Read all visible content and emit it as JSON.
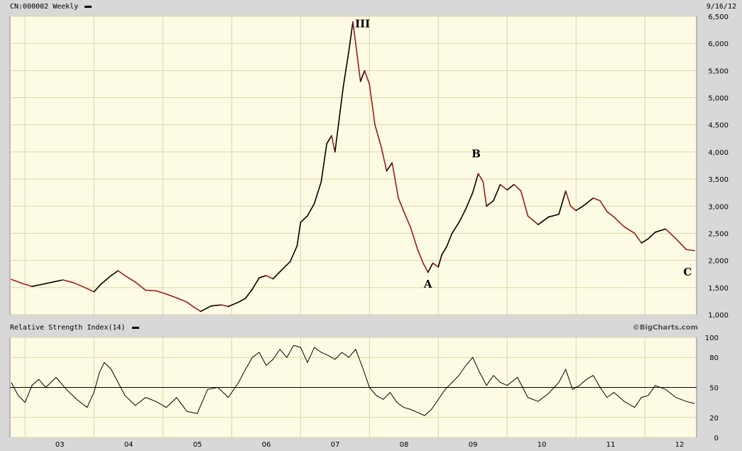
{
  "header": {
    "symbol_label": "CN:000002 Weekly",
    "date": "9/16/12"
  },
  "rsi_panel": {
    "title": "Relative Strength Index(14)",
    "credit": "©BigCharts.com"
  },
  "colors": {
    "plot_bg": "#fdfbe3",
    "grid": "#d9d6a8",
    "frame_bg": "#d8d8d8",
    "up_bar": "#000000",
    "down_bar": "#9b1c1c"
  },
  "chart_data": [
    {
      "type": "line",
      "subtype": "weekly price bars (up black, down red)",
      "x_tick_labels": [
        "03",
        "04",
        "05",
        "06",
        "07",
        "08",
        "09",
        "10",
        "11",
        "12"
      ],
      "y_ticks": [
        1000,
        1500,
        2000,
        2500,
        3000,
        3500,
        4000,
        4500,
        5000,
        5500,
        6000,
        6500
      ],
      "y_tick_labels": [
        "1,000",
        "1,500",
        "2,000",
        "2,500",
        "3,000",
        "3,500",
        "4,000",
        "4,500",
        "5,000",
        "5,500",
        "6,000",
        "6,500"
      ],
      "ylim": [
        1000,
        6500
      ],
      "xlim": [
        2002.78,
        2012.75
      ],
      "scale": "linear",
      "grid": true,
      "points": [
        [
          2002.8,
          1650
        ],
        [
          2002.95,
          1580
        ],
        [
          2003.1,
          1520
        ],
        [
          2003.25,
          1560
        ],
        [
          2003.4,
          1600
        ],
        [
          2003.55,
          1640
        ],
        [
          2003.7,
          1590
        ],
        [
          2003.85,
          1510
        ],
        [
          2004.0,
          1420
        ],
        [
          2004.1,
          1560
        ],
        [
          2004.25,
          1720
        ],
        [
          2004.35,
          1810
        ],
        [
          2004.45,
          1720
        ],
        [
          2004.6,
          1600
        ],
        [
          2004.75,
          1450
        ],
        [
          2004.9,
          1440
        ],
        [
          2005.05,
          1380
        ],
        [
          2005.2,
          1310
        ],
        [
          2005.35,
          1230
        ],
        [
          2005.45,
          1140
        ],
        [
          2005.55,
          1060
        ],
        [
          2005.7,
          1160
        ],
        [
          2005.85,
          1180
        ],
        [
          2005.95,
          1150
        ],
        [
          2006.1,
          1230
        ],
        [
          2006.2,
          1300
        ],
        [
          2006.3,
          1470
        ],
        [
          2006.4,
          1680
        ],
        [
          2006.5,
          1720
        ],
        [
          2006.6,
          1660
        ],
        [
          2006.7,
          1790
        ],
        [
          2006.85,
          1980
        ],
        [
          2006.95,
          2270
        ],
        [
          2007.0,
          2700
        ],
        [
          2007.1,
          2820
        ],
        [
          2007.2,
          3050
        ],
        [
          2007.3,
          3450
        ],
        [
          2007.38,
          4150
        ],
        [
          2007.45,
          4300
        ],
        [
          2007.5,
          4000
        ],
        [
          2007.55,
          4500
        ],
        [
          2007.62,
          5200
        ],
        [
          2007.7,
          5850
        ],
        [
          2007.76,
          6400
        ],
        [
          2007.82,
          5800
        ],
        [
          2007.87,
          5300
        ],
        [
          2007.93,
          5500
        ],
        [
          2008.0,
          5250
        ],
        [
          2008.08,
          4500
        ],
        [
          2008.17,
          4100
        ],
        [
          2008.25,
          3650
        ],
        [
          2008.33,
          3800
        ],
        [
          2008.42,
          3150
        ],
        [
          2008.5,
          2900
        ],
        [
          2008.6,
          2600
        ],
        [
          2008.7,
          2200
        ],
        [
          2008.78,
          1950
        ],
        [
          2008.85,
          1780
        ],
        [
          2008.92,
          1950
        ],
        [
          2009.0,
          1880
        ],
        [
          2009.05,
          2100
        ],
        [
          2009.12,
          2250
        ],
        [
          2009.2,
          2500
        ],
        [
          2009.3,
          2700
        ],
        [
          2009.4,
          2950
        ],
        [
          2009.5,
          3250
        ],
        [
          2009.58,
          3600
        ],
        [
          2009.65,
          3450
        ],
        [
          2009.7,
          3000
        ],
        [
          2009.8,
          3100
        ],
        [
          2009.9,
          3400
        ],
        [
          2010.0,
          3300
        ],
        [
          2010.1,
          3400
        ],
        [
          2010.2,
          3280
        ],
        [
          2010.3,
          2820
        ],
        [
          2010.45,
          2660
        ],
        [
          2010.6,
          2800
        ],
        [
          2010.75,
          2850
        ],
        [
          2010.85,
          3280
        ],
        [
          2010.92,
          3000
        ],
        [
          2011.0,
          2920
        ],
        [
          2011.1,
          3000
        ],
        [
          2011.25,
          3150
        ],
        [
          2011.35,
          3100
        ],
        [
          2011.45,
          2900
        ],
        [
          2011.55,
          2800
        ],
        [
          2011.7,
          2620
        ],
        [
          2011.85,
          2500
        ],
        [
          2011.95,
          2320
        ],
        [
          2012.05,
          2400
        ],
        [
          2012.15,
          2520
        ],
        [
          2012.3,
          2580
        ],
        [
          2012.45,
          2400
        ],
        [
          2012.6,
          2200
        ],
        [
          2012.72,
          2180
        ]
      ],
      "annotations": [
        {
          "label": "III",
          "x": 2007.9,
          "y": 6300
        },
        {
          "label": "A",
          "x": 2008.85,
          "y": 1500
        },
        {
          "label": "B",
          "x": 2009.55,
          "y": 3900
        },
        {
          "label": "C",
          "x": 2012.62,
          "y": 1720
        }
      ]
    },
    {
      "type": "line",
      "title": "Relative Strength Index(14)",
      "y_ticks": [
        0,
        20,
        50,
        80,
        100
      ],
      "y_tick_labels": [
        "0",
        "20",
        "50",
        "80",
        "100"
      ],
      "reference_line": 50,
      "ylim": [
        0,
        100
      ],
      "xlim": [
        2002.78,
        2012.75
      ],
      "grid": true,
      "points": [
        [
          2002.8,
          55
        ],
        [
          2002.9,
          42
        ],
        [
          2003.0,
          35
        ],
        [
          2003.1,
          52
        ],
        [
          2003.2,
          58
        ],
        [
          2003.3,
          50
        ],
        [
          2003.45,
          60
        ],
        [
          2003.6,
          48
        ],
        [
          2003.75,
          38
        ],
        [
          2003.9,
          30
        ],
        [
          2004.0,
          45
        ],
        [
          2004.08,
          65
        ],
        [
          2004.15,
          75
        ],
        [
          2004.25,
          68
        ],
        [
          2004.35,
          55
        ],
        [
          2004.45,
          42
        ],
        [
          2004.6,
          32
        ],
        [
          2004.75,
          40
        ],
        [
          2004.9,
          36
        ],
        [
          2005.05,
          30
        ],
        [
          2005.2,
          40
        ],
        [
          2005.35,
          26
        ],
        [
          2005.5,
          24
        ],
        [
          2005.65,
          48
        ],
        [
          2005.8,
          50
        ],
        [
          2005.95,
          40
        ],
        [
          2006.1,
          55
        ],
        [
          2006.2,
          68
        ],
        [
          2006.3,
          80
        ],
        [
          2006.4,
          85
        ],
        [
          2006.5,
          72
        ],
        [
          2006.6,
          78
        ],
        [
          2006.7,
          88
        ],
        [
          2006.8,
          80
        ],
        [
          2006.9,
          92
        ],
        [
          2007.0,
          90
        ],
        [
          2007.1,
          75
        ],
        [
          2007.2,
          90
        ],
        [
          2007.3,
          85
        ],
        [
          2007.4,
          82
        ],
        [
          2007.5,
          78
        ],
        [
          2007.6,
          85
        ],
        [
          2007.7,
          80
        ],
        [
          2007.8,
          88
        ],
        [
          2007.9,
          70
        ],
        [
          2008.0,
          50
        ],
        [
          2008.1,
          42
        ],
        [
          2008.2,
          38
        ],
        [
          2008.3,
          45
        ],
        [
          2008.4,
          35
        ],
        [
          2008.5,
          30
        ],
        [
          2008.6,
          28
        ],
        [
          2008.7,
          25
        ],
        [
          2008.8,
          22
        ],
        [
          2008.9,
          28
        ],
        [
          2009.0,
          38
        ],
        [
          2009.1,
          48
        ],
        [
          2009.2,
          55
        ],
        [
          2009.3,
          62
        ],
        [
          2009.4,
          72
        ],
        [
          2009.5,
          80
        ],
        [
          2009.6,
          65
        ],
        [
          2009.7,
          52
        ],
        [
          2009.8,
          62
        ],
        [
          2009.9,
          55
        ],
        [
          2010.0,
          52
        ],
        [
          2010.15,
          60
        ],
        [
          2010.3,
          40
        ],
        [
          2010.45,
          36
        ],
        [
          2010.6,
          44
        ],
        [
          2010.75,
          55
        ],
        [
          2010.85,
          68
        ],
        [
          2010.95,
          48
        ],
        [
          2011.05,
          52
        ],
        [
          2011.15,
          58
        ],
        [
          2011.25,
          62
        ],
        [
          2011.35,
          50
        ],
        [
          2011.45,
          40
        ],
        [
          2011.55,
          45
        ],
        [
          2011.7,
          36
        ],
        [
          2011.85,
          30
        ],
        [
          2011.95,
          40
        ],
        [
          2012.05,
          42
        ],
        [
          2012.15,
          52
        ],
        [
          2012.3,
          48
        ],
        [
          2012.45,
          40
        ],
        [
          2012.6,
          36
        ],
        [
          2012.72,
          34
        ]
      ]
    }
  ]
}
